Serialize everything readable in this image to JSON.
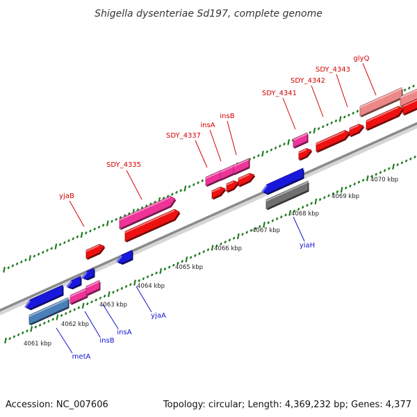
{
  "title": "Shigella dysenteriae Sd197, complete genome",
  "accession": "Accession: NC_007606",
  "topology": "Topology: circular; Length: 4,369,232 bp; Genes: 4,377",
  "colors": {
    "axis": "#888888",
    "ticks": "#1e7a1e",
    "gene_red": "#ee1111",
    "gene_pink": "#ee3399",
    "gene_blue": "#1818dd",
    "gene_steel": "#4a7fb8",
    "gene_gray": "#707070",
    "gene_salmon": "#ec8888",
    "label_red": "#d40000",
    "label_blue": "#1010cc"
  },
  "kbp_labels": [
    "4061 kbp",
    "4062 kbp",
    "4063 kbp",
    "4064 kbp",
    "4065 kbp",
    "4066 kbp",
    "4067 kbp",
    "4068 kbp",
    "4069 kbp",
    "4070 kbp"
  ],
  "gene_labels_top": [
    "yjaB",
    "SDY_4335",
    "SDY_4337",
    "insA",
    "insB",
    "SDY_4341",
    "SDY_4342",
    "SDY_4343",
    "glyQ"
  ],
  "gene_labels_bottom": [
    "metA",
    "insB",
    "insA",
    "yjaA",
    "yiaH"
  ]
}
